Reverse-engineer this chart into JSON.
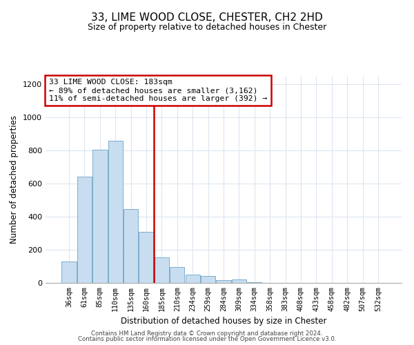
{
  "title": "33, LIME WOOD CLOSE, CHESTER, CH2 2HD",
  "subtitle": "Size of property relative to detached houses in Chester",
  "xlabel": "Distribution of detached houses by size in Chester",
  "ylabel": "Number of detached properties",
  "bar_labels": [
    "36sqm",
    "61sqm",
    "85sqm",
    "110sqm",
    "135sqm",
    "160sqm",
    "185sqm",
    "210sqm",
    "234sqm",
    "259sqm",
    "284sqm",
    "309sqm",
    "334sqm",
    "358sqm",
    "383sqm",
    "408sqm",
    "433sqm",
    "458sqm",
    "482sqm",
    "507sqm",
    "532sqm"
  ],
  "bar_values": [
    130,
    640,
    805,
    860,
    445,
    310,
    155,
    95,
    52,
    40,
    15,
    20,
    5,
    2,
    0,
    0,
    0,
    0,
    0,
    0,
    0
  ],
  "bar_color": "#c8ddf0",
  "bar_edge_color": "#7aaecc",
  "vline_color": "#cc0000",
  "annotation_lines": [
    "33 LIME WOOD CLOSE: 183sqm",
    "← 89% of detached houses are smaller (3,162)",
    "11% of semi-detached houses are larger (392) →"
  ],
  "annotation_box_color": "#ffffff",
  "annotation_box_edge": "#cc0000",
  "ylim": [
    0,
    1250
  ],
  "yticks": [
    0,
    200,
    400,
    600,
    800,
    1000,
    1200
  ],
  "grid_color": "#dce6f0",
  "footer1": "Contains HM Land Registry data © Crown copyright and database right 2024.",
  "footer2": "Contains public sector information licensed under the Open Government Licence v3.0."
}
